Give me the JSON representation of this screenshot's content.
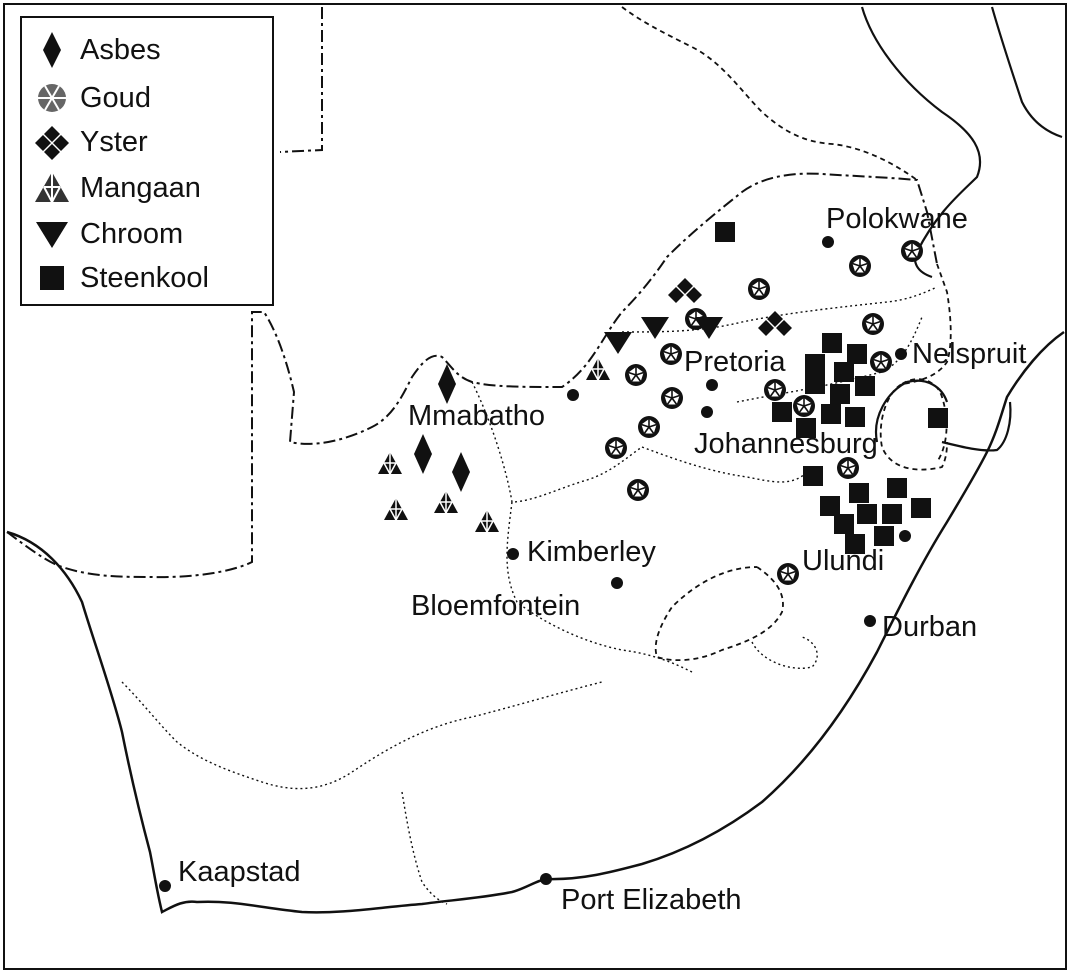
{
  "legend": {
    "asbes": "Asbes",
    "goud": "Goud",
    "yster": "Yster",
    "mangaan": "Mangaan",
    "chroom": "Chroom",
    "steenkool": "Steenkool"
  },
  "cities": {
    "polokwane": "Polokwane",
    "nelspruit": "Nelspruit",
    "pretoria": "Pretoria",
    "mmabatho": "Mmabatho",
    "johannesburg": "Johannesburg",
    "kimberley": "Kimberley",
    "bloemfontein": "Bloemfontein",
    "ulundi": "Ulundi",
    "durban": "Durban",
    "kaapstad": "Kaapstad",
    "port_elizabeth": "Port Elizabeth"
  },
  "colors": {
    "ink": "#111111",
    "gold_fill": "#666666",
    "manganese_fill": "#333333"
  },
  "symbols": {
    "asbes": "diamond-icon",
    "goud": "gold-rosette-icon",
    "yster": "iron-quad-diamond-icon",
    "mangaan": "manganese-triangle-icon",
    "chroom": "chrome-down-triangle-icon",
    "steenkool": "coal-square-icon"
  }
}
